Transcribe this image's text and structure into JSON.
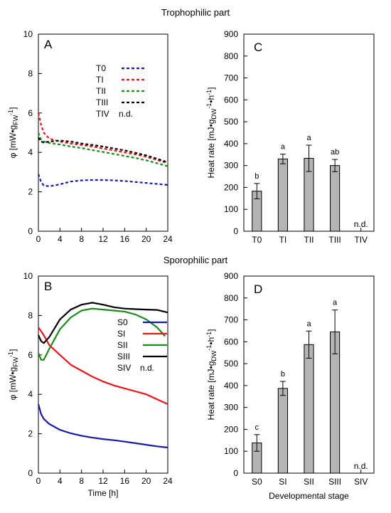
{
  "section_titles": {
    "top": "Trophophilic part",
    "bottom": "Sporophilic part"
  },
  "chart_data": [
    {
      "id": "A",
      "panel_label": "A",
      "type": "line",
      "style": "dashed",
      "xlabel": "",
      "ylabel": "φ [mW•g_FW^-1]",
      "ylabel_parts": [
        "φ [mW•g",
        "FW",
        "-1",
        "]"
      ],
      "xlim": [
        0,
        24
      ],
      "ylim": [
        0,
        10
      ],
      "xticks": [
        0,
        4,
        8,
        12,
        16,
        20,
        24
      ],
      "yticks": [
        0,
        2,
        4,
        6,
        8,
        10
      ],
      "legend_position": "top-right",
      "legend_extra": {
        "name": "TIV",
        "note": "n.d."
      },
      "series": [
        {
          "name": "T0",
          "color": "#1a1aa6",
          "points": [
            [
              0,
              2.9
            ],
            [
              0.5,
              2.5
            ],
            [
              1,
              2.32
            ],
            [
              2,
              2.28
            ],
            [
              4,
              2.38
            ],
            [
              6,
              2.52
            ],
            [
              8,
              2.58
            ],
            [
              10,
              2.6
            ],
            [
              12,
              2.6
            ],
            [
              14,
              2.58
            ],
            [
              16,
              2.55
            ],
            [
              18,
              2.5
            ],
            [
              20,
              2.45
            ],
            [
              22,
              2.4
            ],
            [
              24,
              2.35
            ]
          ]
        },
        {
          "name": "TI",
          "color": "#e8161b",
          "points": [
            [
              0,
              6.0
            ],
            [
              0.5,
              5.4
            ],
            [
              1,
              5.0
            ],
            [
              2,
              4.7
            ],
            [
              4,
              4.55
            ],
            [
              6,
              4.45
            ],
            [
              8,
              4.38
            ],
            [
              10,
              4.3
            ],
            [
              12,
              4.2
            ],
            [
              14,
              4.1
            ],
            [
              16,
              4.0
            ],
            [
              18,
              3.9
            ],
            [
              20,
              3.78
            ],
            [
              22,
              3.62
            ],
            [
              24,
              3.45
            ]
          ]
        },
        {
          "name": "TII",
          "color": "#1a8a1a",
          "points": [
            [
              0,
              5.0
            ],
            [
              0.5,
              4.65
            ],
            [
              1,
              4.55
            ],
            [
              2,
              4.48
            ],
            [
              4,
              4.4
            ],
            [
              6,
              4.3
            ],
            [
              8,
              4.22
            ],
            [
              10,
              4.12
            ],
            [
              12,
              4.02
            ],
            [
              14,
              3.92
            ],
            [
              16,
              3.82
            ],
            [
              18,
              3.72
            ],
            [
              20,
              3.6
            ],
            [
              22,
              3.45
            ],
            [
              24,
              3.3
            ]
          ]
        },
        {
          "name": "TIII",
          "color": "#000000",
          "points": [
            [
              0,
              4.75
            ],
            [
              0.5,
              4.55
            ],
            [
              1,
              4.5
            ],
            [
              2,
              4.55
            ],
            [
              4,
              4.6
            ],
            [
              6,
              4.55
            ],
            [
              8,
              4.45
            ],
            [
              10,
              4.38
            ],
            [
              12,
              4.3
            ],
            [
              14,
              4.2
            ],
            [
              16,
              4.1
            ],
            [
              18,
              3.98
            ],
            [
              20,
              3.85
            ],
            [
              22,
              3.68
            ],
            [
              24,
              3.5
            ]
          ]
        }
      ]
    },
    {
      "id": "C",
      "panel_label": "C",
      "type": "bar",
      "xlabel": "",
      "ylabel": "Heat rate [mJ•g_DW^-1•h^-1]",
      "ylabel_parts": [
        "Heat rate [mJ•g",
        "DW",
        "-1",
        "•h",
        "-1",
        "]"
      ],
      "ylim": [
        0,
        900
      ],
      "yticks": [
        0,
        100,
        200,
        300,
        400,
        500,
        600,
        700,
        800,
        900
      ],
      "categories": [
        "T0",
        "TI",
        "TII",
        "TIII",
        "TIV"
      ],
      "values": [
        183,
        330,
        333,
        300,
        null
      ],
      "errors": [
        35,
        22,
        60,
        28,
        null
      ],
      "significance": [
        "b",
        "a",
        "a",
        "ab",
        ""
      ],
      "nd_label": "n.d."
    },
    {
      "id": "B",
      "panel_label": "B",
      "type": "line",
      "style": "solid",
      "xlabel": "Time [h]",
      "ylabel": "φ [mW•g_FW^-1]",
      "ylabel_parts": [
        "φ [mW•g",
        "FW",
        "-1",
        "]"
      ],
      "xlim": [
        0,
        24
      ],
      "ylim": [
        0,
        10
      ],
      "xticks": [
        0,
        4,
        8,
        12,
        16,
        20,
        24
      ],
      "yticks": [
        0,
        2,
        4,
        6,
        8,
        10
      ],
      "legend_position": "center-right",
      "legend_extra": {
        "name": "SIV",
        "note": "n.d."
      },
      "series": [
        {
          "name": "S0",
          "color": "#1a1aa6",
          "points": [
            [
              0,
              3.5
            ],
            [
              0.5,
              3.0
            ],
            [
              1,
              2.75
            ],
            [
              2,
              2.5
            ],
            [
              4,
              2.2
            ],
            [
              6,
              2.02
            ],
            [
              8,
              1.9
            ],
            [
              10,
              1.8
            ],
            [
              12,
              1.73
            ],
            [
              14,
              1.67
            ],
            [
              16,
              1.6
            ],
            [
              18,
              1.52
            ],
            [
              20,
              1.44
            ],
            [
              22,
              1.36
            ],
            [
              24,
              1.3
            ]
          ]
        },
        {
          "name": "SI",
          "color": "#e8161b",
          "points": [
            [
              0,
              7.4
            ],
            [
              1,
              7.0
            ],
            [
              2,
              6.5
            ],
            [
              4,
              6.0
            ],
            [
              6,
              5.5
            ],
            [
              8,
              5.2
            ],
            [
              10,
              4.9
            ],
            [
              12,
              4.65
            ],
            [
              14,
              4.45
            ],
            [
              16,
              4.3
            ],
            [
              18,
              4.15
            ],
            [
              20,
              4.0
            ],
            [
              22,
              3.75
            ],
            [
              24,
              3.5
            ]
          ]
        },
        {
          "name": "SII",
          "color": "#1a8a1a",
          "points": [
            [
              0,
              6.1
            ],
            [
              0.5,
              5.75
            ],
            [
              1,
              5.75
            ],
            [
              2,
              6.3
            ],
            [
              4,
              7.3
            ],
            [
              6,
              7.9
            ],
            [
              8,
              8.25
            ],
            [
              10,
              8.35
            ],
            [
              12,
              8.3
            ],
            [
              14,
              8.25
            ],
            [
              16,
              8.2
            ],
            [
              18,
              8.05
            ],
            [
              20,
              7.8
            ],
            [
              22,
              7.4
            ],
            [
              23.5,
              6.95
            ]
          ]
        },
        {
          "name": "SIII",
          "color": "#000000",
          "points": [
            [
              0,
              7.0
            ],
            [
              0.5,
              6.7
            ],
            [
              1,
              6.6
            ],
            [
              2,
              6.9
            ],
            [
              4,
              7.8
            ],
            [
              6,
              8.3
            ],
            [
              8,
              8.55
            ],
            [
              10,
              8.65
            ],
            [
              12,
              8.55
            ],
            [
              14,
              8.42
            ],
            [
              16,
              8.35
            ],
            [
              18,
              8.32
            ],
            [
              20,
              8.3
            ],
            [
              22,
              8.28
            ],
            [
              24,
              8.15
            ]
          ]
        }
      ]
    },
    {
      "id": "D",
      "panel_label": "D",
      "type": "bar",
      "xlabel": "Developmental stage",
      "ylabel": "Heat rate [mJ•g_DW^-1•h^-1]",
      "ylabel_parts": [
        "Heat rate [mJ•g",
        "DW",
        "-1",
        "•h",
        "-1",
        "]"
      ],
      "ylim": [
        0,
        900
      ],
      "yticks": [
        0,
        100,
        200,
        300,
        400,
        500,
        600,
        700,
        800,
        900
      ],
      "categories": [
        "S0",
        "SI",
        "SII",
        "SIII",
        "SIV"
      ],
      "values": [
        138,
        387,
        587,
        645,
        null
      ],
      "errors": [
        38,
        32,
        62,
        100,
        null
      ],
      "significance": [
        "c",
        "b",
        "a",
        "a",
        ""
      ],
      "nd_label": "n.d."
    }
  ]
}
